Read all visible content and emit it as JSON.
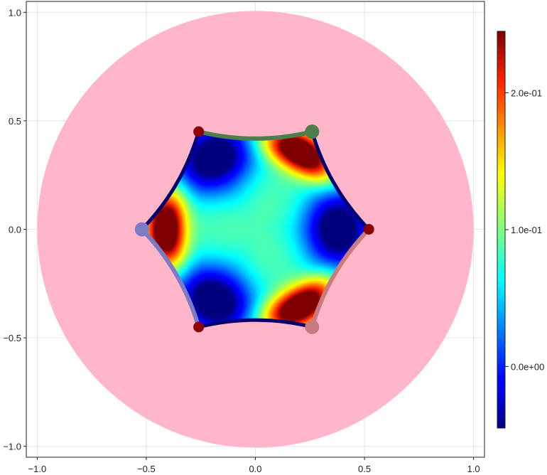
{
  "chart_data": {
    "type": "heatmap",
    "title": "",
    "xlabel": "",
    "ylabel": "",
    "xlim": [
      -1.05,
      1.05
    ],
    "ylim": [
      -1.05,
      1.05
    ],
    "xticks": [
      -1.0,
      -0.5,
      0.0,
      0.5,
      1.0
    ],
    "xtick_labels": [
      "−1.0",
      "−0.5",
      "0.0",
      "0.5",
      "1.0"
    ],
    "yticks": [
      -1.0,
      -0.5,
      0.0,
      0.5,
      1.0
    ],
    "ytick_labels": [
      "−1.0",
      "−0.5",
      "0.0",
      "0.5",
      "1.0"
    ],
    "grid": true,
    "disk": {
      "center": [
        0,
        0
      ],
      "radius": 1.0,
      "color": "#ffb6c8"
    },
    "hexagon": {
      "vertices": [
        [
          0.52,
          0.0
        ],
        [
          0.26,
          0.45
        ],
        [
          -0.26,
          0.45
        ],
        [
          -0.52,
          0.0
        ],
        [
          -0.26,
          -0.45
        ],
        [
          0.26,
          -0.45
        ]
      ],
      "edge_color": "#00006e",
      "edge_sag": 0.032
    },
    "colormap": "jet",
    "color_range": [
      -0.045,
      0.245
    ],
    "colorbar_ticks": [
      0.0,
      0.1,
      0.2
    ],
    "colorbar_labels": [
      "0.0e+00",
      "1.0e-01",
      "2.0e-01"
    ],
    "highlighted_arcs": [
      {
        "from": 2,
        "to": 1,
        "color": "#4e7d4e"
      },
      {
        "from": 3,
        "to": 4,
        "color": "#7b7bc8"
      },
      {
        "from": 5,
        "to": 0,
        "color": "#c97b80"
      }
    ],
    "markers": [
      {
        "x": 0.26,
        "y": 0.45,
        "color": "#4e7d4e",
        "size": "large"
      },
      {
        "x": -0.52,
        "y": 0.0,
        "color": "#7b7bc8",
        "size": "large"
      },
      {
        "x": 0.26,
        "y": -0.45,
        "color": "#c97b80",
        "size": "large"
      },
      {
        "x": -0.26,
        "y": 0.45,
        "color": "#8b0000",
        "size": "small"
      },
      {
        "x": 0.52,
        "y": 0.0,
        "color": "#8b0000",
        "size": "small"
      },
      {
        "x": -0.26,
        "y": -0.45,
        "color": "#8b0000",
        "size": "small"
      }
    ]
  }
}
